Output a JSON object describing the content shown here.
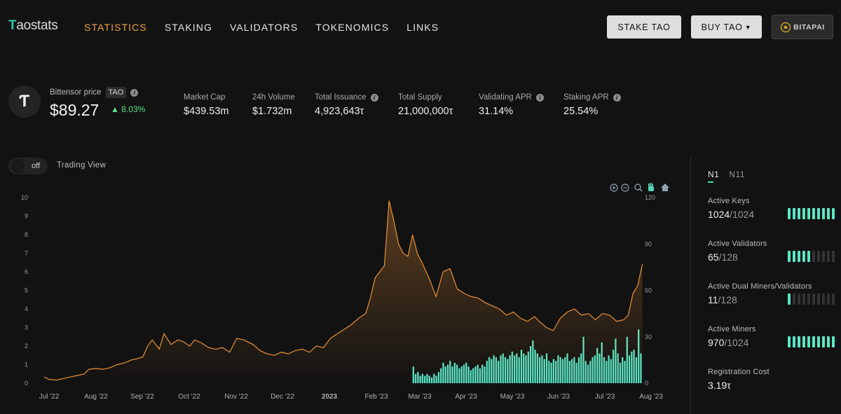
{
  "header": {
    "logo": "Taostats",
    "nav": [
      "STATISTICS",
      "STAKING",
      "VALIDATORS",
      "TOKENOMICS",
      "LINKS"
    ],
    "active_nav": "STATISTICS",
    "stake_button": "STAKE TAO",
    "buy_button": "BUY TAO",
    "partner_logo": "BITAPAI"
  },
  "price": {
    "symbol_glyph": "Ƭ",
    "label": "Bittensor price",
    "ticker": "TAO",
    "value": "$89.27",
    "change": "▲ 8.03%"
  },
  "stats": [
    {
      "label": "Market Cap",
      "value": "$439.53m",
      "info": false
    },
    {
      "label": "24h Volume",
      "value": "$1.732m",
      "info": false
    },
    {
      "label": "Total Issuance",
      "value": "4,923,643τ",
      "info": true
    },
    {
      "label": "Total Supply",
      "value": "21,000,000τ",
      "info": false
    },
    {
      "label": "Validating APR",
      "value": "31.14%",
      "info": true
    },
    {
      "label": "Staking APR",
      "value": "25.54%",
      "info": true
    }
  ],
  "toggle": {
    "state": "off",
    "label": "Trading View"
  },
  "side_panel": {
    "tabs": [
      "N1",
      "N11"
    ],
    "active_tab": "N1",
    "metrics": [
      {
        "label": "Active Keys",
        "value": "1024",
        "total": "/1024",
        "fill": 1.0
      },
      {
        "label": "Active Validators",
        "value": "65",
        "total": "/128",
        "fill": 0.51
      },
      {
        "label": "Active Dual Miners/Validators",
        "value": "11",
        "total": "/128",
        "fill": 0.09
      },
      {
        "label": "Active Miners",
        "value": "970",
        "total": "/1024",
        "fill": 0.95
      },
      {
        "label": "Registration Cost",
        "value": "3.19τ",
        "total": "",
        "fill": null
      }
    ]
  },
  "colors": {
    "accent": "#f0a04b",
    "price_line": "#e8913a",
    "volume_bar": "#59e7c6",
    "positive": "#5ce08a"
  },
  "icons": [
    "zoom-in-icon",
    "zoom-out-icon",
    "magnify-icon",
    "pan-hand-icon",
    "home-icon",
    "info-icon"
  ],
  "chart_data": {
    "type": "line",
    "x_ticks": [
      "Jul '22",
      "Aug '22",
      "Sep '22",
      "Oct '22",
      "Nov '22",
      "Dec '22",
      "2023",
      "Feb '23",
      "Mar '23",
      "Apr '23",
      "May '23",
      "Jun '23",
      "Jul '23",
      "Aug '23"
    ],
    "y_left_ticks": [
      0,
      1,
      2,
      3,
      4,
      5,
      6,
      7,
      8,
      9,
      10
    ],
    "y_right_ticks": [
      0,
      30,
      60,
      90,
      120
    ],
    "series": [
      {
        "axis": "right",
        "kind": "line",
        "x": [
          0.05,
          0.15,
          0.3,
          0.45,
          0.6,
          0.75,
          0.9,
          1.0,
          1.15,
          1.3,
          1.45,
          1.6,
          1.75,
          1.9,
          2.05,
          2.15,
          2.25,
          2.35,
          2.5,
          2.6,
          2.75,
          2.9,
          3.0,
          3.15,
          3.25,
          3.4,
          3.55,
          3.7,
          3.85,
          4.0,
          4.15,
          4.3,
          4.5,
          4.65,
          4.8,
          4.95,
          5.1,
          5.25,
          5.4,
          5.55,
          5.7,
          5.85,
          6.0,
          6.15,
          6.3,
          6.45,
          6.6,
          6.75,
          6.9,
          7.0,
          7.1,
          7.2,
          7.3,
          7.4,
          7.5,
          7.6,
          7.7,
          7.8,
          7.9,
          8.0,
          8.1,
          8.25,
          8.4,
          8.55,
          8.7,
          8.85,
          9.0,
          9.15,
          9.3,
          9.45,
          9.6,
          9.75,
          9.9,
          10.05,
          10.2,
          10.35,
          10.5,
          10.6,
          10.75,
          10.9,
          11.05,
          11.2,
          11.35,
          11.5,
          11.65,
          11.8,
          11.95,
          12.1,
          12.25,
          12.4,
          12.5,
          12.6,
          12.7,
          12.8
        ],
        "y": [
          4,
          2.5,
          2,
          3,
          4,
          5,
          6,
          9,
          9.5,
          9,
          10,
          12,
          13,
          15,
          16,
          17,
          24,
          28,
          22,
          32,
          25,
          28,
          27,
          24,
          28,
          26,
          23,
          22,
          23,
          20,
          29,
          28,
          25,
          21,
          19,
          18,
          20,
          19,
          21,
          22,
          20,
          24,
          23,
          29,
          32,
          35,
          38,
          42,
          45,
          55,
          68,
          72,
          76,
          118,
          105,
          90,
          84,
          82,
          96,
          84,
          78,
          68,
          56,
          72,
          74,
          61,
          58,
          56,
          55,
          52,
          50,
          48,
          44,
          46,
          42,
          40,
          43,
          40,
          36,
          34,
          42,
          46,
          48,
          44,
          45,
          41,
          45,
          44,
          40,
          41,
          44,
          58,
          63,
          77
        ],
        "color": "#e8913a"
      },
      {
        "axis": "left",
        "kind": "bar",
        "x_start": 7.9,
        "x_end": 12.8,
        "values": [
          0.9,
          0.5,
          0.6,
          0.4,
          0.5,
          0.4,
          0.5,
          0.4,
          0.3,
          0.5,
          0.4,
          0.6,
          0.8,
          1.1,
          0.9,
          1.0,
          1.2,
          0.9,
          1.1,
          1.0,
          0.8,
          0.9,
          1.0,
          1.1,
          0.9,
          0.7,
          0.8,
          0.9,
          1.0,
          0.8,
          1.0,
          0.9,
          1.2,
          1.4,
          1.3,
          1.5,
          1.4,
          1.2,
          1.5,
          1.6,
          1.4,
          1.3,
          1.5,
          1.7,
          1.5,
          1.6,
          1.4,
          1.8,
          1.6,
          1.5,
          1.7,
          2.0,
          2.3,
          1.8,
          1.6,
          1.4,
          1.5,
          1.3,
          1.6,
          1.2,
          1.1,
          1.3,
          1.2,
          1.5,
          1.4,
          1.3,
          1.4,
          1.6,
          1.2,
          1.3,
          1.4,
          1.1,
          1.4,
          1.6,
          2.5,
          1.2,
          1.0,
          1.2,
          1.4,
          1.5,
          1.9,
          1.6,
          2.2,
          1.4,
          1.2,
          1.5,
          1.3,
          1.8,
          2.4,
          1.6,
          1.1,
          1.4,
          1.2,
          2.5,
          1.5,
          1.7,
          1.8,
          1.4,
          2.9,
          1.6
        ],
        "color": "#59e7c6"
      }
    ]
  }
}
